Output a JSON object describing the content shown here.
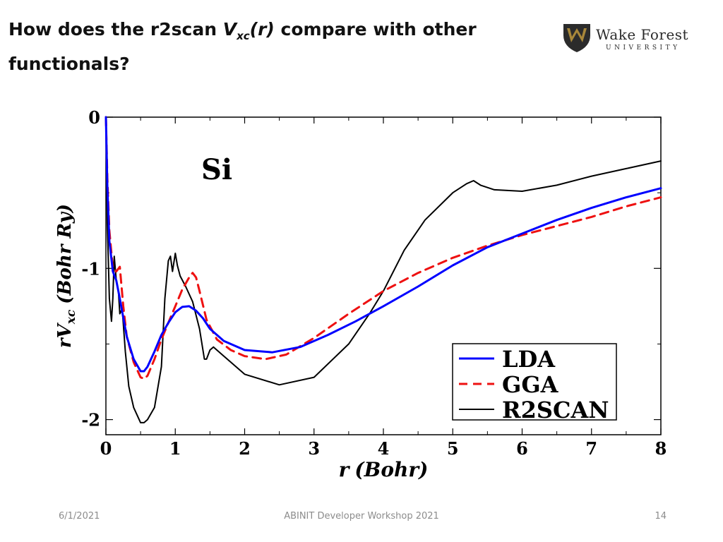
{
  "slide": {
    "title_prefix": "How does the r2scan ",
    "title_var": "V",
    "title_sub": "xc",
    "title_arg": "(r)",
    "title_suffix": " compare with other functionals?"
  },
  "logo": {
    "line1": "Wake Forest",
    "line2": "UNIVERSITY"
  },
  "footer": {
    "date": "6/1/2021",
    "event": "ABINIT Developer Workshop 2021",
    "page": "14"
  },
  "colors": {
    "lda": "#0000ff",
    "gga": "#ee1111",
    "r2scan": "#000000",
    "logo_gold": "#a8873a",
    "logo_dark": "#2b2b2b"
  },
  "chart_data": {
    "type": "line",
    "annotation": "Si",
    "xlabel_parts": {
      "var": "r",
      "unit": "(Bohr)"
    },
    "ylabel_parts": {
      "pre": "rV",
      "sub": "xc",
      "unit": "(Bohr Ry)"
    },
    "xlim": [
      0,
      8
    ],
    "ylim": [
      -2.1,
      0.0
    ],
    "xticks": [
      0,
      1,
      2,
      3,
      4,
      5,
      6,
      7,
      8
    ],
    "yticks": [
      0,
      -1,
      -2
    ],
    "grid": false,
    "legend": "bottom-right",
    "series": [
      {
        "name": "LDA",
        "style": "solid",
        "x": [
          0.0,
          0.02,
          0.05,
          0.1,
          0.15,
          0.2,
          0.3,
          0.4,
          0.5,
          0.55,
          0.6,
          0.7,
          0.8,
          0.9,
          1.0,
          1.1,
          1.2,
          1.3,
          1.4,
          1.5,
          1.7,
          2.0,
          2.4,
          2.8,
          3.2,
          3.6,
          4.0,
          4.5,
          5.0,
          5.5,
          6.0,
          6.5,
          7.0,
          7.5,
          8.0
        ],
        "y": [
          0.0,
          -0.45,
          -0.82,
          -1.02,
          -1.08,
          -1.2,
          -1.45,
          -1.6,
          -1.68,
          -1.68,
          -1.65,
          -1.55,
          -1.44,
          -1.36,
          -1.29,
          -1.255,
          -1.25,
          -1.28,
          -1.33,
          -1.4,
          -1.48,
          -1.54,
          -1.555,
          -1.52,
          -1.44,
          -1.35,
          -1.25,
          -1.12,
          -0.98,
          -0.86,
          -0.77,
          -0.68,
          -0.6,
          -0.53,
          -0.47
        ]
      },
      {
        "name": "GGA",
        "style": "dashed",
        "x": [
          0.0,
          0.02,
          0.05,
          0.1,
          0.15,
          0.2,
          0.25,
          0.3,
          0.4,
          0.5,
          0.55,
          0.6,
          0.7,
          0.8,
          0.9,
          1.0,
          1.1,
          1.2,
          1.25,
          1.3,
          1.35,
          1.45,
          1.6,
          1.8,
          2.0,
          2.3,
          2.6,
          3.0,
          3.5,
          4.0,
          4.5,
          5.0,
          5.5,
          6.0,
          6.5,
          7.0,
          7.5,
          8.0
        ],
        "y": [
          0.0,
          -0.4,
          -0.75,
          -1.0,
          -1.02,
          -0.99,
          -1.25,
          -1.45,
          -1.62,
          -1.72,
          -1.73,
          -1.71,
          -1.6,
          -1.47,
          -1.36,
          -1.25,
          -1.14,
          -1.06,
          -1.03,
          -1.06,
          -1.15,
          -1.34,
          -1.47,
          -1.54,
          -1.58,
          -1.6,
          -1.57,
          -1.46,
          -1.3,
          -1.15,
          -1.03,
          -0.93,
          -0.85,
          -0.78,
          -0.72,
          -0.66,
          -0.59,
          -0.53
        ]
      },
      {
        "name": "R2SCAN",
        "style": "solid",
        "x": [
          0.0,
          0.02,
          0.05,
          0.08,
          0.1,
          0.12,
          0.15,
          0.18,
          0.2,
          0.22,
          0.24,
          0.28,
          0.33,
          0.4,
          0.5,
          0.55,
          0.6,
          0.7,
          0.8,
          0.85,
          0.9,
          0.93,
          0.96,
          1.0,
          1.03,
          1.07,
          1.15,
          1.25,
          1.35,
          1.42,
          1.45,
          1.5,
          1.55,
          1.7,
          2.0,
          2.5,
          3.0,
          3.5,
          3.8,
          4.0,
          4.3,
          4.6,
          5.0,
          5.2,
          5.3,
          5.4,
          5.6,
          6.0,
          6.5,
          7.0,
          7.5,
          8.0
        ],
        "y": [
          0.0,
          -0.7,
          -1.2,
          -1.35,
          -1.2,
          -0.92,
          -1.08,
          -1.15,
          -1.3,
          -1.28,
          -1.3,
          -1.55,
          -1.78,
          -1.92,
          -2.02,
          -2.02,
          -2.0,
          -1.92,
          -1.65,
          -1.2,
          -0.95,
          -0.92,
          -1.02,
          -0.9,
          -0.98,
          -1.05,
          -1.12,
          -1.22,
          -1.4,
          -1.6,
          -1.6,
          -1.54,
          -1.52,
          -1.58,
          -1.7,
          -1.77,
          -1.72,
          -1.5,
          -1.3,
          -1.15,
          -0.88,
          -0.68,
          -0.5,
          -0.44,
          -0.42,
          -0.45,
          -0.48,
          -0.49,
          -0.45,
          -0.39,
          -0.34,
          -0.29
        ]
      }
    ]
  }
}
